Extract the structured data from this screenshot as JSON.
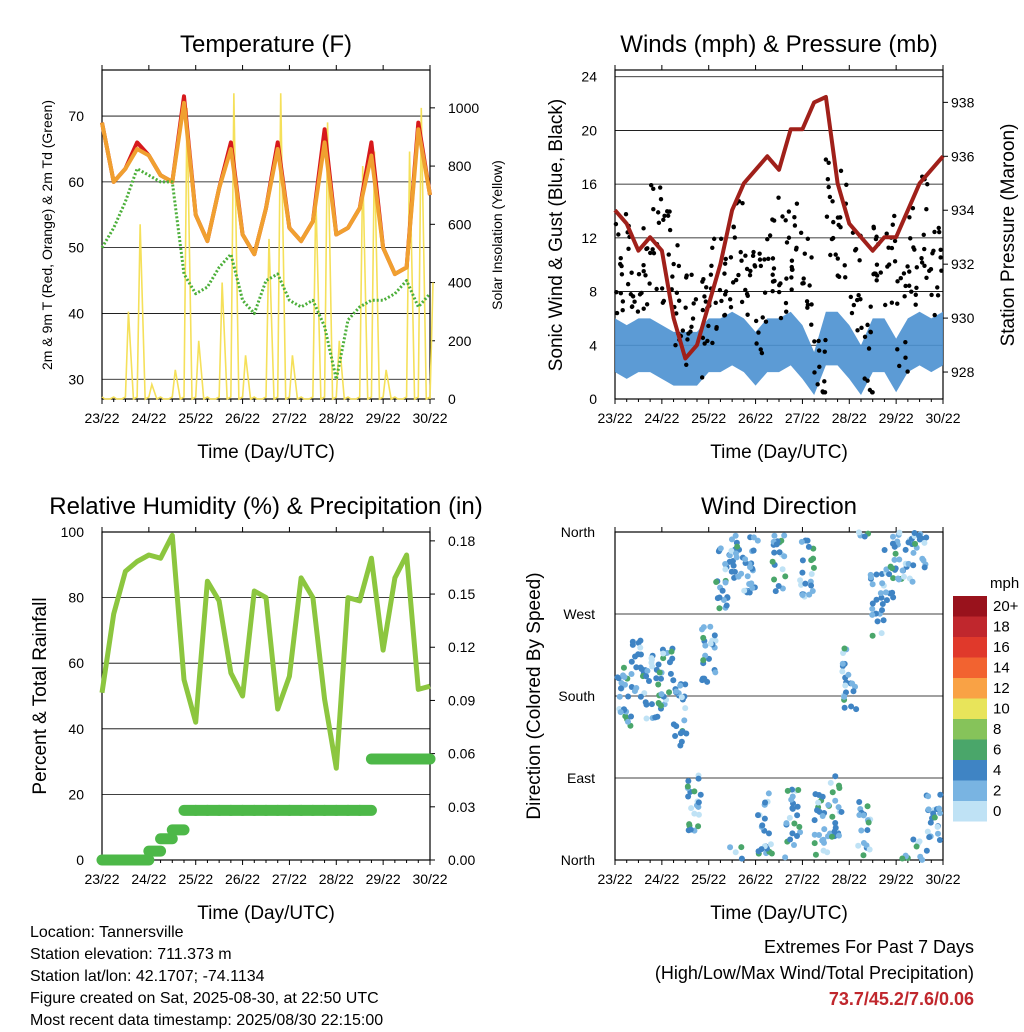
{
  "time_ticks": [
    "23/22",
    "24/22",
    "25/22",
    "26/22",
    "27/22",
    "28/22",
    "29/22",
    "30/22"
  ],
  "chart_data": [
    {
      "type": "line",
      "title": "Temperature (F)",
      "xlabel": "Time (Day/UTC)",
      "ylabel": "2m & 9m T (Red, Orange) & 2m Td (Green)",
      "y2label": "Solar Insolation (Yellow)",
      "ylim": [
        27,
        77
      ],
      "yticks": [
        30,
        40,
        50,
        60,
        70
      ],
      "y2lim": [
        0,
        1130
      ],
      "y2ticks": [
        0,
        200,
        400,
        600,
        800,
        1000
      ],
      "x": [
        0,
        0.25,
        0.5,
        0.75,
        1,
        1.25,
        1.5,
        1.75,
        2,
        2.25,
        2.5,
        2.75,
        3,
        3.25,
        3.5,
        3.75,
        4,
        4.25,
        4.5,
        4.75,
        5,
        5.25,
        5.5,
        5.75,
        6,
        6.25,
        6.5,
        6.75,
        7
      ],
      "series": [
        {
          "color": "#d7191c",
          "values": [
            69,
            60,
            62,
            66,
            64,
            61,
            60,
            73,
            55,
            51,
            59,
            66,
            52,
            49,
            56,
            66,
            53,
            51,
            54,
            68,
            52,
            53,
            56,
            66,
            50,
            46,
            47,
            69,
            58
          ]
        },
        {
          "color": "#f0a030",
          "values": [
            69,
            60,
            62,
            65,
            64,
            61,
            60,
            72,
            55,
            51,
            59,
            65,
            52,
            49,
            56,
            65,
            53,
            51,
            54,
            66,
            52,
            53,
            56,
            64,
            50,
            46,
            47,
            68,
            58
          ]
        },
        {
          "color": "#4caf3a",
          "values": [
            50,
            53,
            57,
            62,
            61,
            60,
            60,
            46,
            43,
            44,
            47,
            49,
            42,
            40,
            45,
            46,
            42,
            41,
            42,
            38,
            30,
            39,
            41,
            42,
            42,
            43,
            45,
            41,
            43
          ]
        },
        {
          "color": "#f5e05a",
          "axis": "y2",
          "values": [
            0,
            0,
            300,
            600,
            50,
            0,
            100,
            1000,
            200,
            0,
            400,
            1050,
            150,
            0,
            550,
            1050,
            150,
            0,
            700,
            950,
            200,
            0,
            800,
            850,
            100,
            0,
            850,
            1000,
            400
          ]
        }
      ]
    },
    {
      "type": "scatter",
      "title": "Winds (mph) & Pressure (mb)",
      "xlabel": "Time (Day/UTC)",
      "ylabel": "Sonic Wind & Gust (Blue, Black)",
      "y2label": "Station Pressure (Maroon)",
      "ylim": [
        0,
        24.5
      ],
      "yticks": [
        0,
        4,
        8,
        12,
        16,
        20,
        24
      ],
      "y2lim": [
        927,
        939.2
      ],
      "y2ticks": [
        928,
        930,
        932,
        934,
        936,
        938
      ],
      "x": [
        0,
        0.25,
        0.5,
        0.75,
        1,
        1.25,
        1.5,
        1.75,
        2,
        2.25,
        2.5,
        2.75,
        3,
        3.25,
        3.5,
        3.75,
        4,
        4.25,
        4.5,
        4.75,
        5,
        5.25,
        5.5,
        5.75,
        6,
        6.25,
        6.5,
        6.75,
        7
      ],
      "series": [
        {
          "name": "Gust",
          "color": "#000000",
          "values": [
            10,
            9,
            10,
            12,
            11,
            8,
            6,
            5,
            8,
            10,
            11,
            9,
            7,
            12,
            10,
            11,
            9,
            2,
            14,
            13,
            9,
            3,
            12,
            10,
            6,
            11,
            13,
            9,
            12
          ]
        },
        {
          "name": "Wind",
          "color": "#4a90d0",
          "values": [
            4,
            3.5,
            4,
            4,
            3.5,
            3,
            3,
            3,
            4,
            4,
            4.5,
            4,
            3,
            4,
            4,
            4.5,
            3.5,
            1.5,
            4.5,
            4.5,
            3.5,
            2,
            4,
            4,
            2.5,
            4,
            4.5,
            4,
            4.5
          ]
        },
        {
          "name": "Pressure",
          "axis": "y2",
          "color": "#a0201a",
          "values": [
            934,
            933.5,
            932.5,
            933,
            932.5,
            930,
            928.5,
            929,
            930.5,
            932,
            934,
            935,
            935.5,
            936,
            935.5,
            937,
            937,
            938,
            938.2,
            935,
            933.5,
            933,
            932.5,
            933,
            933,
            934,
            935,
            935.5,
            936
          ]
        }
      ]
    },
    {
      "type": "line",
      "title": "Relative Humidity (%) & Precipitation (in)",
      "xlabel": "Time (Day/UTC)",
      "ylabel": "Percent & Total Rainfall",
      "ylim": [
        0,
        100
      ],
      "yticks": [
        0,
        20,
        40,
        60,
        80,
        100
      ],
      "y2lim": [
        0,
        0.185
      ],
      "y2ticks": [
        "0.00",
        "0.03",
        "0.06",
        "0.09",
        "0.12",
        "0.15",
        "0.18"
      ],
      "x": [
        0,
        0.25,
        0.5,
        0.75,
        1,
        1.25,
        1.5,
        1.75,
        2,
        2.25,
        2.5,
        2.75,
        3,
        3.25,
        3.5,
        3.75,
        4,
        4.25,
        4.5,
        4.75,
        5,
        5.25,
        5.5,
        5.75,
        6,
        6.25,
        6.5,
        6.75,
        7
      ],
      "series": [
        {
          "color": "#8cc63f",
          "values": [
            51,
            75,
            88,
            91,
            93,
            92,
            99,
            55,
            42,
            85,
            79,
            57,
            50,
            82,
            80,
            46,
            56,
            86,
            80,
            49,
            28,
            80,
            79,
            92,
            64,
            86,
            93,
            52,
            53
          ]
        },
        {
          "color": "#4db848",
          "axis": "y2",
          "values": [
            0,
            0,
            0,
            0,
            0.005,
            0.012,
            0.017,
            0.028,
            0.028,
            0.028,
            0.028,
            0.028,
            0.028,
            0.028,
            0.028,
            0.028,
            0.028,
            0.028,
            0.028,
            0.028,
            0.028,
            0.028,
            0.028,
            0.057,
            0.057,
            0.057,
            0.057,
            0.057,
            0.057
          ]
        }
      ]
    },
    {
      "type": "scatter",
      "title": "Wind Direction",
      "xlabel": "Time (Day/UTC)",
      "ylabel": "Direction (Colored By Speed)",
      "yticks": [
        "North",
        "East",
        "South",
        "West",
        "North"
      ],
      "legend_title": "mph",
      "legend_levels": [
        "20+",
        "18",
        "16",
        "14",
        "12",
        "10",
        "8",
        "6",
        "4",
        "2",
        "0"
      ],
      "legend_colors": [
        "#99121c",
        "#c0272d",
        "#e0392b",
        "#f26330",
        "#f9a245",
        "#e8e45a",
        "#86c35a",
        "#4aa66a",
        "#3f84c4",
        "#79b4e2",
        "#bfe2f5"
      ],
      "x": [
        0.2,
        0.5,
        0.8,
        1.1,
        1.4,
        1.7,
        2.0,
        2.3,
        2.6,
        2.9,
        3.2,
        3.5,
        3.8,
        4.1,
        4.4,
        4.7,
        5.0,
        5.3,
        5.6,
        5.9,
        6.2,
        6.5,
        6.8
      ],
      "values": [
        180,
        210,
        190,
        200,
        160,
        60,
        230,
        310,
        340,
        320,
        40,
        330,
        50,
        320,
        40,
        60,
        200,
        30,
        280,
        320,
        330,
        350,
        40
      ]
    }
  ],
  "info": {
    "location": "Location: Tannersville",
    "elevation": "Station elevation: 711.373 m",
    "latlon": "Station lat/lon: 42.1707; -74.1134",
    "created": "Figure created on Sat, 2025-08-30, at 22:50 UTC",
    "recent": "Most recent data timestamp: 2025/08/30 22:15:00"
  },
  "extremes": {
    "heading": "Extremes For Past 7 Days",
    "subheading": "(High/Low/Max Wind/Total Precipitation)",
    "values": "73.7/45.2/7.6/0.06"
  }
}
